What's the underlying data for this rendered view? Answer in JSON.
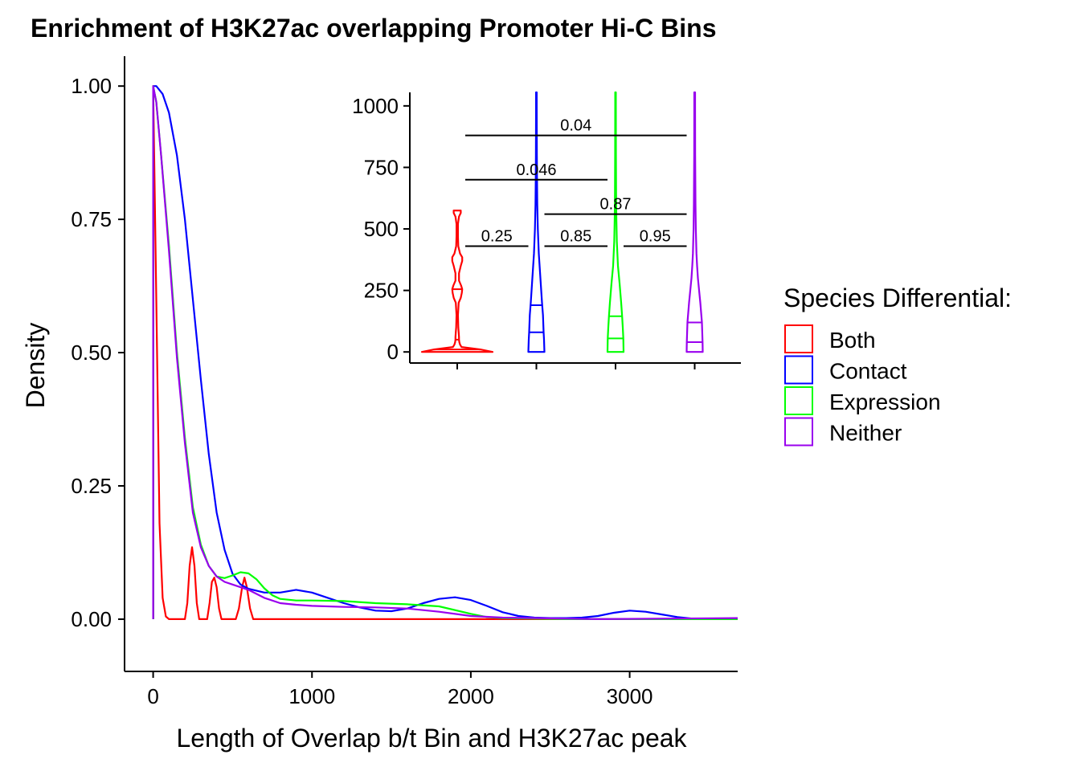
{
  "chart_data": [
    {
      "type": "line",
      "title": "Enrichment of H3K27ac overlapping Promoter Hi-C Bins",
      "xlabel": "Length of Overlap b/t Bin and H3K27ac peak",
      "ylabel": "Density",
      "xlim": [
        -180,
        3680
      ],
      "ylim": [
        -0.098,
        1.056
      ],
      "x_ticks": [
        {
          "value": 0,
          "label": "0"
        },
        {
          "value": 1000,
          "label": "1000"
        },
        {
          "value": 2000,
          "label": "2000"
        },
        {
          "value": 3000,
          "label": "3000"
        }
      ],
      "y_ticks": [
        {
          "value": 0,
          "label": "0.00"
        },
        {
          "value": 0.25,
          "label": "0.25"
        },
        {
          "value": 0.5,
          "label": "0.50"
        },
        {
          "value": 0.75,
          "label": "0.75"
        },
        {
          "value": 1.0,
          "label": "1.00"
        }
      ],
      "series": [
        {
          "name": "Both",
          "color": "#ff0000",
          "points": [
            [
              0,
              0
            ],
            [
              0,
              1.0
            ],
            [
              20,
              0.6
            ],
            [
              40,
              0.18
            ],
            [
              60,
              0.04
            ],
            [
              80,
              0.005
            ],
            [
              100,
              0
            ],
            [
              200,
              0
            ],
            [
              215,
              0.03
            ],
            [
              230,
              0.1
            ],
            [
              245,
              0.135
            ],
            [
              260,
              0.1
            ],
            [
              275,
              0.03
            ],
            [
              290,
              0
            ],
            [
              340,
              0
            ],
            [
              355,
              0.03
            ],
            [
              370,
              0.07
            ],
            [
              385,
              0.078
            ],
            [
              400,
              0.06
            ],
            [
              415,
              0.02
            ],
            [
              430,
              0
            ],
            [
              520,
              0
            ],
            [
              540,
              0.02
            ],
            [
              560,
              0.06
            ],
            [
              575,
              0.078
            ],
            [
              590,
              0.06
            ],
            [
              610,
              0.02
            ],
            [
              630,
              0
            ],
            [
              3680,
              0
            ]
          ]
        },
        {
          "name": "Contact",
          "color": "#0000ff",
          "points": [
            [
              0,
              0
            ],
            [
              0,
              1.0
            ],
            [
              20,
              1.0
            ],
            [
              60,
              0.985
            ],
            [
              100,
              0.95
            ],
            [
              150,
              0.87
            ],
            [
              200,
              0.75
            ],
            [
              250,
              0.6
            ],
            [
              300,
              0.45
            ],
            [
              350,
              0.31
            ],
            [
              400,
              0.2
            ],
            [
              450,
              0.13
            ],
            [
              500,
              0.085
            ],
            [
              550,
              0.065
            ],
            [
              600,
              0.057
            ],
            [
              700,
              0.05
            ],
            [
              800,
              0.05
            ],
            [
              900,
              0.055
            ],
            [
              1000,
              0.05
            ],
            [
              1100,
              0.04
            ],
            [
              1200,
              0.03
            ],
            [
              1300,
              0.022
            ],
            [
              1400,
              0.016
            ],
            [
              1500,
              0.015
            ],
            [
              1600,
              0.02
            ],
            [
              1700,
              0.03
            ],
            [
              1800,
              0.038
            ],
            [
              1900,
              0.041
            ],
            [
              2000,
              0.036
            ],
            [
              2100,
              0.025
            ],
            [
              2200,
              0.013
            ],
            [
              2300,
              0.006
            ],
            [
              2400,
              0.003
            ],
            [
              2500,
              0.002
            ],
            [
              2600,
              0.002
            ],
            [
              2700,
              0.003
            ],
            [
              2800,
              0.006
            ],
            [
              2900,
              0.012
            ],
            [
              3000,
              0.016
            ],
            [
              3100,
              0.014
            ],
            [
              3200,
              0.009
            ],
            [
              3300,
              0.004
            ],
            [
              3400,
              0.001
            ],
            [
              3500,
              0
            ],
            [
              3600,
              0.001
            ],
            [
              3680,
              0.002
            ]
          ]
        },
        {
          "name": "Expression",
          "color": "#00ff00",
          "points": [
            [
              0,
              0
            ],
            [
              0,
              1.0
            ],
            [
              20,
              0.97
            ],
            [
              50,
              0.87
            ],
            [
              100,
              0.7
            ],
            [
              150,
              0.5
            ],
            [
              200,
              0.34
            ],
            [
              250,
              0.21
            ],
            [
              300,
              0.14
            ],
            [
              350,
              0.1
            ],
            [
              400,
              0.08
            ],
            [
              450,
              0.077
            ],
            [
              500,
              0.082
            ],
            [
              550,
              0.088
            ],
            [
              600,
              0.086
            ],
            [
              650,
              0.075
            ],
            [
              700,
              0.058
            ],
            [
              750,
              0.045
            ],
            [
              800,
              0.038
            ],
            [
              900,
              0.035
            ],
            [
              1000,
              0.035
            ],
            [
              1200,
              0.034
            ],
            [
              1400,
              0.03
            ],
            [
              1600,
              0.028
            ],
            [
              1800,
              0.024
            ],
            [
              2000,
              0.01
            ],
            [
              2100,
              0.004
            ],
            [
              2200,
              0.002
            ],
            [
              2400,
              0.001
            ],
            [
              2600,
              0
            ],
            [
              3680,
              0
            ]
          ]
        },
        {
          "name": "Neither",
          "color": "#9900ee",
          "points": [
            [
              0,
              0
            ],
            [
              0,
              1.0
            ],
            [
              20,
              0.97
            ],
            [
              50,
              0.87
            ],
            [
              100,
              0.69
            ],
            [
              150,
              0.49
            ],
            [
              200,
              0.33
            ],
            [
              250,
              0.2
            ],
            [
              300,
              0.135
            ],
            [
              350,
              0.1
            ],
            [
              400,
              0.08
            ],
            [
              450,
              0.07
            ],
            [
              500,
              0.065
            ],
            [
              600,
              0.055
            ],
            [
              700,
              0.04
            ],
            [
              800,
              0.03
            ],
            [
              900,
              0.027
            ],
            [
              1000,
              0.025
            ],
            [
              1200,
              0.023
            ],
            [
              1400,
              0.022
            ],
            [
              1600,
              0.02
            ],
            [
              1800,
              0.014
            ],
            [
              2000,
              0.006
            ],
            [
              2200,
              0.003
            ],
            [
              2400,
              0.002
            ],
            [
              2600,
              0.001
            ],
            [
              2800,
              0
            ],
            [
              3680,
              0.002
            ]
          ]
        }
      ]
    },
    {
      "type": "violin",
      "ylim": [
        -45,
        1055
      ],
      "y_ticks": [
        {
          "value": 0,
          "label": "0"
        },
        {
          "value": 250,
          "label": "250"
        },
        {
          "value": 500,
          "label": "500"
        },
        {
          "value": 750,
          "label": "750"
        },
        {
          "value": 1000,
          "label": "1000"
        }
      ],
      "groups": [
        {
          "name": "Both",
          "color": "#ff0000",
          "max_half_width": 44,
          "profile": [
            [
              0,
              1.0
            ],
            [
              10,
              0.65
            ],
            [
              20,
              0.12
            ],
            [
              30,
              0.08
            ],
            [
              40,
              0.06
            ],
            [
              50,
              0.05
            ],
            [
              60,
              0.05
            ],
            [
              80,
              0.04
            ],
            [
              100,
              0.03
            ],
            [
              150,
              0.02
            ],
            [
              200,
              0.04
            ],
            [
              220,
              0.1
            ],
            [
              240,
              0.13
            ],
            [
              255,
              0.14
            ],
            [
              270,
              0.11
            ],
            [
              290,
              0.05
            ],
            [
              320,
              0.05
            ],
            [
              350,
              0.1
            ],
            [
              370,
              0.14
            ],
            [
              385,
              0.14
            ],
            [
              400,
              0.08
            ],
            [
              430,
              0.03
            ],
            [
              470,
              0.02
            ],
            [
              520,
              0.02
            ],
            [
              550,
              0.05
            ],
            [
              565,
              0.1
            ],
            [
              575,
              0.1
            ]
          ],
          "quantiles": [
            10,
            50,
            255
          ]
        },
        {
          "name": "Contact",
          "color": "#0000ff",
          "max_half_width": 10,
          "profile": [
            [
              0,
              1.0
            ],
            [
              50,
              0.95
            ],
            [
              80,
              0.9
            ],
            [
              150,
              0.82
            ],
            [
              200,
              0.7
            ],
            [
              300,
              0.5
            ],
            [
              400,
              0.3
            ],
            [
              500,
              0.18
            ],
            [
              600,
              0.11
            ],
            [
              700,
              0.08
            ],
            [
              800,
              0.06
            ],
            [
              900,
              0.05
            ],
            [
              1000,
              0.04
            ],
            [
              1055,
              0.04
            ]
          ],
          "quantiles": [
            80,
            190
          ]
        },
        {
          "name": "Expression",
          "color": "#00ff00",
          "max_half_width": 10,
          "profile": [
            [
              0,
              1.0
            ],
            [
              55,
              0.97
            ],
            [
              100,
              0.9
            ],
            [
              145,
              0.82
            ],
            [
              200,
              0.7
            ],
            [
              280,
              0.5
            ],
            [
              350,
              0.3
            ],
            [
              450,
              0.16
            ],
            [
              550,
              0.1
            ],
            [
              650,
              0.07
            ],
            [
              800,
              0.05
            ],
            [
              1000,
              0.04
            ],
            [
              1055,
              0.04
            ]
          ],
          "quantiles": [
            55,
            145
          ]
        },
        {
          "name": "Neither",
          "color": "#9900ee",
          "max_half_width": 10,
          "profile": [
            [
              0,
              1.0
            ],
            [
              40,
              0.98
            ],
            [
              120,
              0.9
            ],
            [
              200,
              0.7
            ],
            [
              250,
              0.55
            ],
            [
              300,
              0.4
            ],
            [
              350,
              0.3
            ],
            [
              400,
              0.22
            ],
            [
              500,
              0.14
            ],
            [
              600,
              0.1
            ],
            [
              800,
              0.06
            ],
            [
              1000,
              0.05
            ],
            [
              1055,
              0.05
            ]
          ],
          "quantiles": [
            40,
            120
          ]
        }
      ],
      "comparisons": [
        {
          "from": "Both",
          "to": "Contact",
          "y": 430,
          "label": "0.25"
        },
        {
          "from": "Contact",
          "to": "Expression",
          "y": 430,
          "label": "0.85"
        },
        {
          "from": "Expression",
          "to": "Neither",
          "y": 430,
          "label": "0.95"
        },
        {
          "from": "Contact",
          "to": "Neither",
          "y": 560,
          "label": "0.87"
        },
        {
          "from": "Both",
          "to": "Expression",
          "y": 700,
          "label": "0.046"
        },
        {
          "from": "Both",
          "to": "Neither",
          "y": 880,
          "label": "0.04"
        }
      ]
    }
  ],
  "legend": {
    "title": "Species Differential:",
    "position": "right",
    "items": [
      {
        "label": "Both",
        "color": "#ff0000"
      },
      {
        "label": "Contact",
        "color": "#0000ff"
      },
      {
        "label": "Expression",
        "color": "#00ff00"
      },
      {
        "label": "Neither",
        "color": "#9900ee"
      }
    ]
  }
}
